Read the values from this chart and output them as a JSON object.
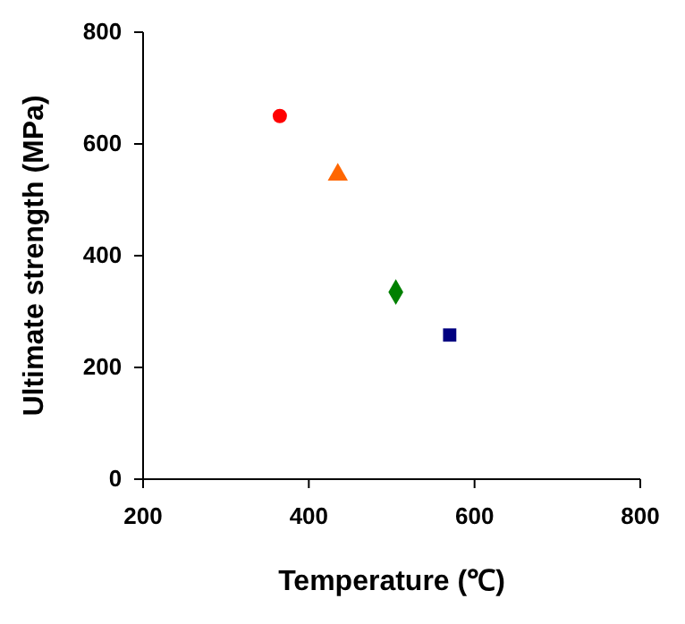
{
  "chart_data": {
    "type": "scatter",
    "xlabel": "Temperature (℃)",
    "ylabel": "Ultimate strength (MPa)",
    "xlim": [
      200,
      800
    ],
    "xticks": [
      200,
      400,
      600,
      800
    ],
    "ylim": [
      0,
      800
    ],
    "yticks": [
      0,
      200,
      400,
      600,
      800
    ],
    "grid": false,
    "series": [
      {
        "x": [
          365
        ],
        "values": [
          650
        ],
        "color": "#ff0000",
        "marker": "circle"
      },
      {
        "x": [
          435
        ],
        "values": [
          545
        ],
        "color": "#ff6600",
        "marker": "triangle"
      },
      {
        "x": [
          505
        ],
        "values": [
          335
        ],
        "color": "#008000",
        "marker": "diamond"
      },
      {
        "x": [
          570
        ],
        "values": [
          258
        ],
        "color": "#000080",
        "marker": "square"
      }
    ]
  }
}
